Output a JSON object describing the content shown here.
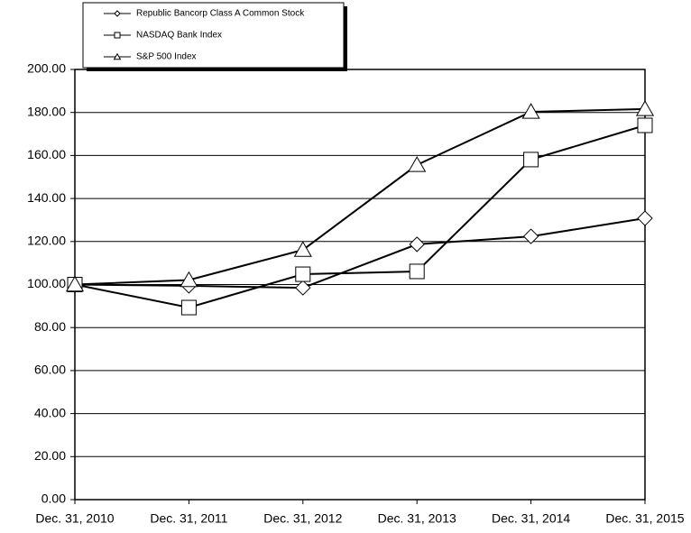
{
  "chart_data": {
    "type": "line",
    "categories": [
      "Dec. 31, 2010",
      "Dec. 31, 2011",
      "Dec. 31, 2012",
      "Dec. 31, 2013",
      "Dec. 31, 2014",
      "Dec. 31, 2015"
    ],
    "series": [
      {
        "name": "Republic Bancorp Class A Common Stock",
        "color": "#000000",
        "marker": "diamond",
        "values": [
          100,
          99.4,
          98.5,
          118.7,
          122.4,
          130.8
        ]
      },
      {
        "name": "NASDAQ Bank Index",
        "color": "#000000",
        "marker": "square",
        "values": [
          100,
          89.3,
          104.8,
          106.1,
          158.1,
          174.0
        ]
      },
      {
        "name": "S&P 500 Index",
        "color": "#000000",
        "marker": "triangle",
        "values": [
          100,
          102.1,
          116.1,
          155.6,
          180.3,
          181.6
        ]
      }
    ],
    "ylim": [
      0,
      200
    ],
    "yticks": [
      {
        "value": 0,
        "label": "0.00"
      },
      {
        "value": 20,
        "label": "20.00"
      },
      {
        "value": 40,
        "label": "40.00"
      },
      {
        "value": 60,
        "label": "60.00"
      },
      {
        "value": 80,
        "label": "80.00"
      },
      {
        "value": 100,
        "label": "100.00"
      },
      {
        "value": 120,
        "label": "120.00"
      },
      {
        "value": 140,
        "label": "140.00"
      },
      {
        "value": 160,
        "label": "160.00"
      },
      {
        "value": 180,
        "label": "180.00"
      },
      {
        "value": 200,
        "label": "200.00"
      }
    ],
    "grid": true
  }
}
